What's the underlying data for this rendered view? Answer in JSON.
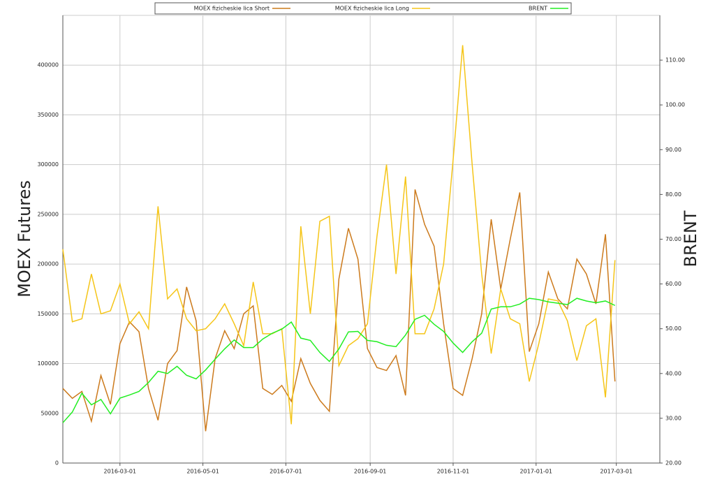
{
  "chart_data": {
    "type": "line",
    "x": [
      "2016-01-19",
      "2016-01-26",
      "2016-02-02",
      "2016-02-09",
      "2016-02-16",
      "2016-02-23",
      "2016-03-01",
      "2016-03-08",
      "2016-03-15",
      "2016-03-22",
      "2016-03-29",
      "2016-04-05",
      "2016-04-12",
      "2016-04-19",
      "2016-04-26",
      "2016-05-03",
      "2016-05-10",
      "2016-05-17",
      "2016-05-24",
      "2016-05-31",
      "2016-06-07",
      "2016-06-14",
      "2016-06-21",
      "2016-06-28",
      "2016-07-05",
      "2016-07-12",
      "2016-07-19",
      "2016-07-26",
      "2016-08-02",
      "2016-08-09",
      "2016-08-16",
      "2016-08-23",
      "2016-08-30",
      "2016-09-06",
      "2016-09-13",
      "2016-09-20",
      "2016-09-27",
      "2016-10-04",
      "2016-10-11",
      "2016-10-18",
      "2016-10-25",
      "2016-11-01",
      "2016-11-08",
      "2016-11-15",
      "2016-11-22",
      "2016-11-29",
      "2016-12-06",
      "2016-12-13",
      "2016-12-20",
      "2016-12-27",
      "2017-01-03",
      "2017-01-10",
      "2017-01-17",
      "2017-01-24",
      "2017-01-31",
      "2017-02-07",
      "2017-02-14",
      "2017-02-21",
      "2017-02-28"
    ],
    "series": [
      {
        "name": "MOEX fizicheskie lica Short",
        "color": "#cc7a1c",
        "axis": "y",
        "values": [
          75000,
          65000,
          72000,
          42000,
          88000,
          59000,
          120000,
          142000,
          132000,
          75000,
          43000,
          100000,
          113000,
          177000,
          143000,
          32000,
          105000,
          133000,
          115000,
          150000,
          158000,
          75000,
          69000,
          78000,
          62000,
          105000,
          80000,
          63000,
          52000,
          185000,
          236000,
          205000,
          115000,
          96000,
          93000,
          108000,
          68000,
          275000,
          240000,
          218000,
          140000,
          75000,
          68000,
          105000,
          150000,
          245000,
          175000,
          225000,
          272000,
          112000,
          140000,
          192000,
          165000,
          155000,
          205000,
          190000,
          160000,
          230000,
          82000
        ]
      },
      {
        "name": "MOEX fizicheskie lica Long",
        "color": "#f5c518",
        "axis": "y",
        "values": [
          215000,
          142000,
          145000,
          190000,
          150000,
          153000,
          180000,
          140000,
          152000,
          135000,
          258000,
          165000,
          175000,
          145000,
          133000,
          135000,
          145000,
          160000,
          140000,
          118000,
          182000,
          130000,
          130000,
          135000,
          39000,
          238000,
          150000,
          243000,
          248000,
          98000,
          118000,
          125000,
          140000,
          228000,
          300000,
          190000,
          288000,
          130000,
          130000,
          155000,
          200000,
          305000,
          420000,
          300000,
          190000,
          110000,
          175000,
          145000,
          140000,
          82000,
          120000,
          165000,
          163000,
          143000,
          103000,
          138000,
          145000,
          66000,
          204000
        ]
      },
      {
        "name": "BRENT",
        "color": "#22ee22",
        "axis": "y2",
        "values": [
          29,
          31.4,
          35.6,
          33,
          34.2,
          31,
          34.5,
          35.2,
          36,
          38,
          40.5,
          40,
          41.6,
          39.6,
          38.8,
          40.8,
          43.2,
          45.5,
          47.5,
          45.8,
          45.8,
          47.7,
          49,
          49.9,
          51.5,
          47.9,
          47.4,
          44.7,
          42.7,
          45.5,
          49.3,
          49.4,
          47.4,
          47.1,
          46.3,
          46,
          48.6,
          52.1,
          53,
          51,
          49.4,
          46.8,
          44.7,
          47.1,
          49,
          54.4,
          54.9,
          54.9,
          55.5,
          56.8,
          56.5,
          56,
          55.7,
          55.4,
          56.8,
          56.2,
          55.8,
          56.2,
          55.2
        ]
      }
    ],
    "xlim": [
      "2016-01-19",
      "2017-04-02"
    ],
    "xticks": [
      "2016-03-01",
      "2016-05-01",
      "2016-07-01",
      "2016-09-01",
      "2016-11-01",
      "2017-01-01",
      "2017-03-01"
    ],
    "ylabel": "MOEX Futures",
    "ylim": [
      0,
      450000
    ],
    "yticks": [
      0,
      50000,
      100000,
      150000,
      200000,
      250000,
      300000,
      350000,
      400000
    ],
    "y2label": "BRENT",
    "y2lim": [
      20,
      120
    ],
    "y2ticks": [
      {
        "value": 20,
        "label": "20.00"
      },
      {
        "value": 30,
        "label": "30.00"
      },
      {
        "value": 40,
        "label": "40.00"
      },
      {
        "value": 50,
        "label": "50.00"
      },
      {
        "value": 60,
        "label": "60.00"
      },
      {
        "value": 70,
        "label": "70.00"
      },
      {
        "value": 80,
        "label": "80.00"
      },
      {
        "value": 90,
        "label": "90.00"
      },
      {
        "value": 100,
        "label": "100.00"
      },
      {
        "value": 110,
        "label": "110.00"
      }
    ],
    "grid": true,
    "legend": "top"
  }
}
